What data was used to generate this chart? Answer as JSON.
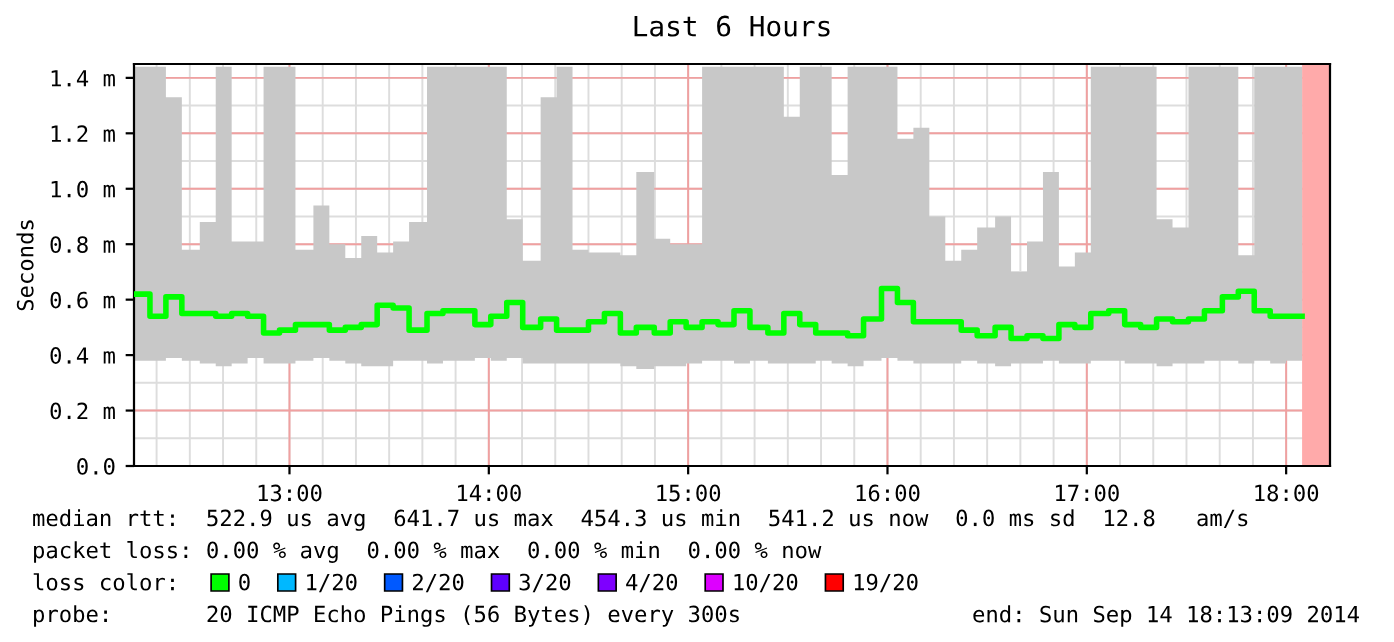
{
  "chart_data": {
    "type": "step",
    "title": "Last 6 Hours",
    "ylabel": "Seconds",
    "x": [
      12.22,
      12.3,
      12.38,
      12.46,
      12.55,
      12.63,
      12.71,
      12.79,
      12.87,
      12.95,
      13.03,
      13.12,
      13.2,
      13.28,
      13.36,
      13.44,
      13.52,
      13.6,
      13.69,
      13.77,
      13.85,
      13.93,
      14.01,
      14.09,
      14.17,
      14.26,
      14.34,
      14.42,
      14.5,
      14.58,
      14.66,
      14.74,
      14.83,
      14.91,
      14.99,
      15.07,
      15.15,
      15.23,
      15.31,
      15.4,
      15.48,
      15.56,
      15.64,
      15.72,
      15.8,
      15.88,
      15.97,
      16.05,
      16.13,
      16.21,
      16.29,
      16.37,
      16.45,
      16.54,
      16.62,
      16.7,
      16.78,
      16.86,
      16.94,
      17.02,
      17.11,
      17.19,
      17.27,
      17.35,
      17.43,
      17.51,
      17.59,
      17.68,
      17.76,
      17.84,
      17.92,
      18.0,
      18.08
    ],
    "series": [
      {
        "name": "0",
        "color": "#00ff00",
        "values": [
          0.62,
          0.54,
          0.61,
          0.55,
          0.55,
          0.54,
          0.55,
          0.54,
          0.48,
          0.49,
          0.51,
          0.51,
          0.49,
          0.5,
          0.51,
          0.58,
          0.57,
          0.49,
          0.55,
          0.56,
          0.56,
          0.51,
          0.54,
          0.59,
          0.5,
          0.53,
          0.49,
          0.49,
          0.52,
          0.55,
          0.48,
          0.5,
          0.48,
          0.52,
          0.5,
          0.52,
          0.51,
          0.56,
          0.5,
          0.48,
          0.55,
          0.51,
          0.48,
          0.48,
          0.47,
          0.53,
          0.64,
          0.59,
          0.52,
          0.52,
          0.52,
          0.49,
          0.47,
          0.5,
          0.46,
          0.47,
          0.46,
          0.51,
          0.5,
          0.55,
          0.56,
          0.51,
          0.5,
          0.53,
          0.52,
          0.53,
          0.56,
          0.61,
          0.63,
          0.56,
          0.54,
          0.54,
          0.54
        ],
        "lower": [
          0.38,
          0.38,
          0.39,
          0.38,
          0.37,
          0.36,
          0.37,
          0.39,
          0.37,
          0.37,
          0.38,
          0.39,
          0.38,
          0.37,
          0.36,
          0.36,
          0.38,
          0.38,
          0.37,
          0.38,
          0.38,
          0.39,
          0.38,
          0.39,
          0.37,
          0.37,
          0.37,
          0.37,
          0.37,
          0.37,
          0.36,
          0.35,
          0.36,
          0.36,
          0.37,
          0.38,
          0.38,
          0.37,
          0.38,
          0.37,
          0.37,
          0.37,
          0.38,
          0.37,
          0.36,
          0.38,
          0.39,
          0.38,
          0.37,
          0.37,
          0.37,
          0.38,
          0.37,
          0.36,
          0.37,
          0.37,
          0.38,
          0.37,
          0.37,
          0.38,
          0.38,
          0.37,
          0.37,
          0.36,
          0.37,
          0.37,
          0.38,
          0.38,
          0.37,
          0.38,
          0.37,
          0.38,
          0.38
        ],
        "upper": [
          1.44,
          1.44,
          1.33,
          0.78,
          0.88,
          1.44,
          0.81,
          0.81,
          1.44,
          1.44,
          0.78,
          0.94,
          0.8,
          0.75,
          0.83,
          0.77,
          0.81,
          0.88,
          1.44,
          1.44,
          1.44,
          1.44,
          1.44,
          0.89,
          0.74,
          1.33,
          1.44,
          0.78,
          0.77,
          0.77,
          0.76,
          1.06,
          0.82,
          0.8,
          0.8,
          1.44,
          1.44,
          1.44,
          1.44,
          1.44,
          1.26,
          1.44,
          1.44,
          1.05,
          1.44,
          1.44,
          1.44,
          1.18,
          1.22,
          0.9,
          0.74,
          0.78,
          0.86,
          0.9,
          0.7,
          0.81,
          1.06,
          0.72,
          0.77,
          1.44,
          1.44,
          1.44,
          1.44,
          0.89,
          0.86,
          1.44,
          1.44,
          1.44,
          0.76,
          1.44,
          1.44,
          1.44,
          1.44
        ]
      },
      {
        "name": "1/20",
        "color": "#00b8ff",
        "values": [
          null,
          null,
          null,
          null,
          null,
          null,
          null,
          null,
          null,
          null,
          null,
          null,
          null,
          null,
          null,
          null,
          null,
          null,
          null,
          null,
          null,
          null,
          null,
          null,
          null,
          null,
          null,
          null,
          null,
          null,
          null,
          null,
          null,
          null,
          null,
          null,
          null,
          null,
          null,
          null,
          null,
          null,
          null,
          null,
          null,
          null,
          null,
          null,
          null,
          null,
          null,
          null,
          null,
          null,
          null,
          null,
          null,
          null,
          null,
          null,
          null,
          null,
          null,
          null,
          null,
          null,
          null,
          null,
          null,
          null,
          null,
          null,
          null
        ]
      },
      {
        "name": "2/20",
        "color": "#0059ff",
        "values": [
          null,
          null,
          null,
          null,
          null,
          null,
          null,
          null,
          null,
          null,
          null,
          null,
          null,
          null,
          null,
          null,
          null,
          null,
          null,
          null,
          null,
          null,
          null,
          null,
          null,
          null,
          null,
          null,
          null,
          null,
          null,
          null,
          null,
          null,
          null,
          null,
          null,
          null,
          null,
          null,
          null,
          null,
          null,
          null,
          null,
          null,
          null,
          null,
          null,
          null,
          null,
          null,
          null,
          null,
          null,
          null,
          null,
          null,
          null,
          null,
          null,
          null,
          null,
          null,
          null,
          null,
          null,
          null,
          null,
          null,
          null,
          null,
          null
        ]
      },
      {
        "name": "3/20",
        "color": "#5e00ff",
        "values": [
          null,
          null,
          null,
          null,
          null,
          null,
          null,
          null,
          null,
          null,
          null,
          null,
          null,
          null,
          null,
          null,
          null,
          null,
          null,
          null,
          null,
          null,
          null,
          null,
          null,
          null,
          null,
          null,
          null,
          null,
          null,
          null,
          null,
          null,
          null,
          null,
          null,
          null,
          null,
          null,
          null,
          null,
          null,
          null,
          null,
          null,
          null,
          null,
          null,
          null,
          null,
          null,
          null,
          null,
          null,
          null,
          null,
          null,
          null,
          null,
          null,
          null,
          null,
          null,
          null,
          null,
          null,
          null,
          null,
          null,
          null,
          null,
          null
        ]
      },
      {
        "name": "4/20",
        "color": "#7e00ff",
        "values": [
          null,
          null,
          null,
          null,
          null,
          null,
          null,
          null,
          null,
          null,
          null,
          null,
          null,
          null,
          null,
          null,
          null,
          null,
          null,
          null,
          null,
          null,
          null,
          null,
          null,
          null,
          null,
          null,
          null,
          null,
          null,
          null,
          null,
          null,
          null,
          null,
          null,
          null,
          null,
          null,
          null,
          null,
          null,
          null,
          null,
          null,
          null,
          null,
          null,
          null,
          null,
          null,
          null,
          null,
          null,
          null,
          null,
          null,
          null,
          null,
          null,
          null,
          null,
          null,
          null,
          null,
          null,
          null,
          null,
          null,
          null,
          null,
          null
        ]
      },
      {
        "name": "10/20",
        "color": "#dd00ff",
        "values": [
          null,
          null,
          null,
          null,
          null,
          null,
          null,
          null,
          null,
          null,
          null,
          null,
          null,
          null,
          null,
          null,
          null,
          null,
          null,
          null,
          null,
          null,
          null,
          null,
          null,
          null,
          null,
          null,
          null,
          null,
          null,
          null,
          null,
          null,
          null,
          null,
          null,
          null,
          null,
          null,
          null,
          null,
          null,
          null,
          null,
          null,
          null,
          null,
          null,
          null,
          null,
          null,
          null,
          null,
          null,
          null,
          null,
          null,
          null,
          null,
          null,
          null,
          null,
          null,
          null,
          null,
          null,
          null,
          null,
          null,
          null,
          null,
          null
        ]
      },
      {
        "name": "19/20",
        "color": "#ff0000",
        "values": [
          null,
          null,
          null,
          null,
          null,
          null,
          null,
          null,
          null,
          null,
          null,
          null,
          null,
          null,
          null,
          null,
          null,
          null,
          null,
          null,
          null,
          null,
          null,
          null,
          null,
          null,
          null,
          null,
          null,
          null,
          null,
          null,
          null,
          null,
          null,
          null,
          null,
          null,
          null,
          null,
          null,
          null,
          null,
          null,
          null,
          null,
          null,
          null,
          null,
          null,
          null,
          null,
          null,
          null,
          null,
          null,
          null,
          null,
          null,
          null,
          null,
          null,
          null,
          null,
          null,
          null,
          null,
          null,
          null,
          null,
          null,
          null,
          null
        ]
      }
    ],
    "xlim": [
      12.22,
      18.22
    ],
    "xticks": [
      {
        "value": 13,
        "label": "13:00"
      },
      {
        "value": 14,
        "label": "14:00"
      },
      {
        "value": 15,
        "label": "15:00"
      },
      {
        "value": 16,
        "label": "16:00"
      },
      {
        "value": 17,
        "label": "17:00"
      },
      {
        "value": 18,
        "label": "18:00"
      }
    ],
    "ylim": [
      0,
      1.45
    ],
    "yticks": [
      {
        "value": 0,
        "label": "0.0"
      },
      {
        "value": 0.2,
        "label": "0.2 m"
      },
      {
        "value": 0.4,
        "label": "0.4 m"
      },
      {
        "value": 0.6,
        "label": "0.6 m"
      },
      {
        "value": 0.8,
        "label": "0.8 m"
      },
      {
        "value": 1.0,
        "label": "1.0 m"
      },
      {
        "value": 1.2,
        "label": "1.2 m"
      },
      {
        "value": 1.4,
        "label": "1.4 m"
      }
    ],
    "bands": [
      {
        "axis": "x",
        "from": 18.08,
        "to": 18.22,
        "color": "#ffaaaa"
      }
    ],
    "grid": true,
    "legend": "bottom",
    "annotations": [
      "median rtt:  522.9 us avg  641.7 us max  454.3 us min  541.2 us now  0.0 ms sd  12.8   am/s",
      "packet loss: 0.00 % avg  0.00 % max  0.00 % min  0.00 % now",
      "loss color:",
      "probe:       20 ICMP Echo Pings (56 Bytes) every 300s",
      "end: Sun Sep 14 18:13:09 2014"
    ]
  }
}
